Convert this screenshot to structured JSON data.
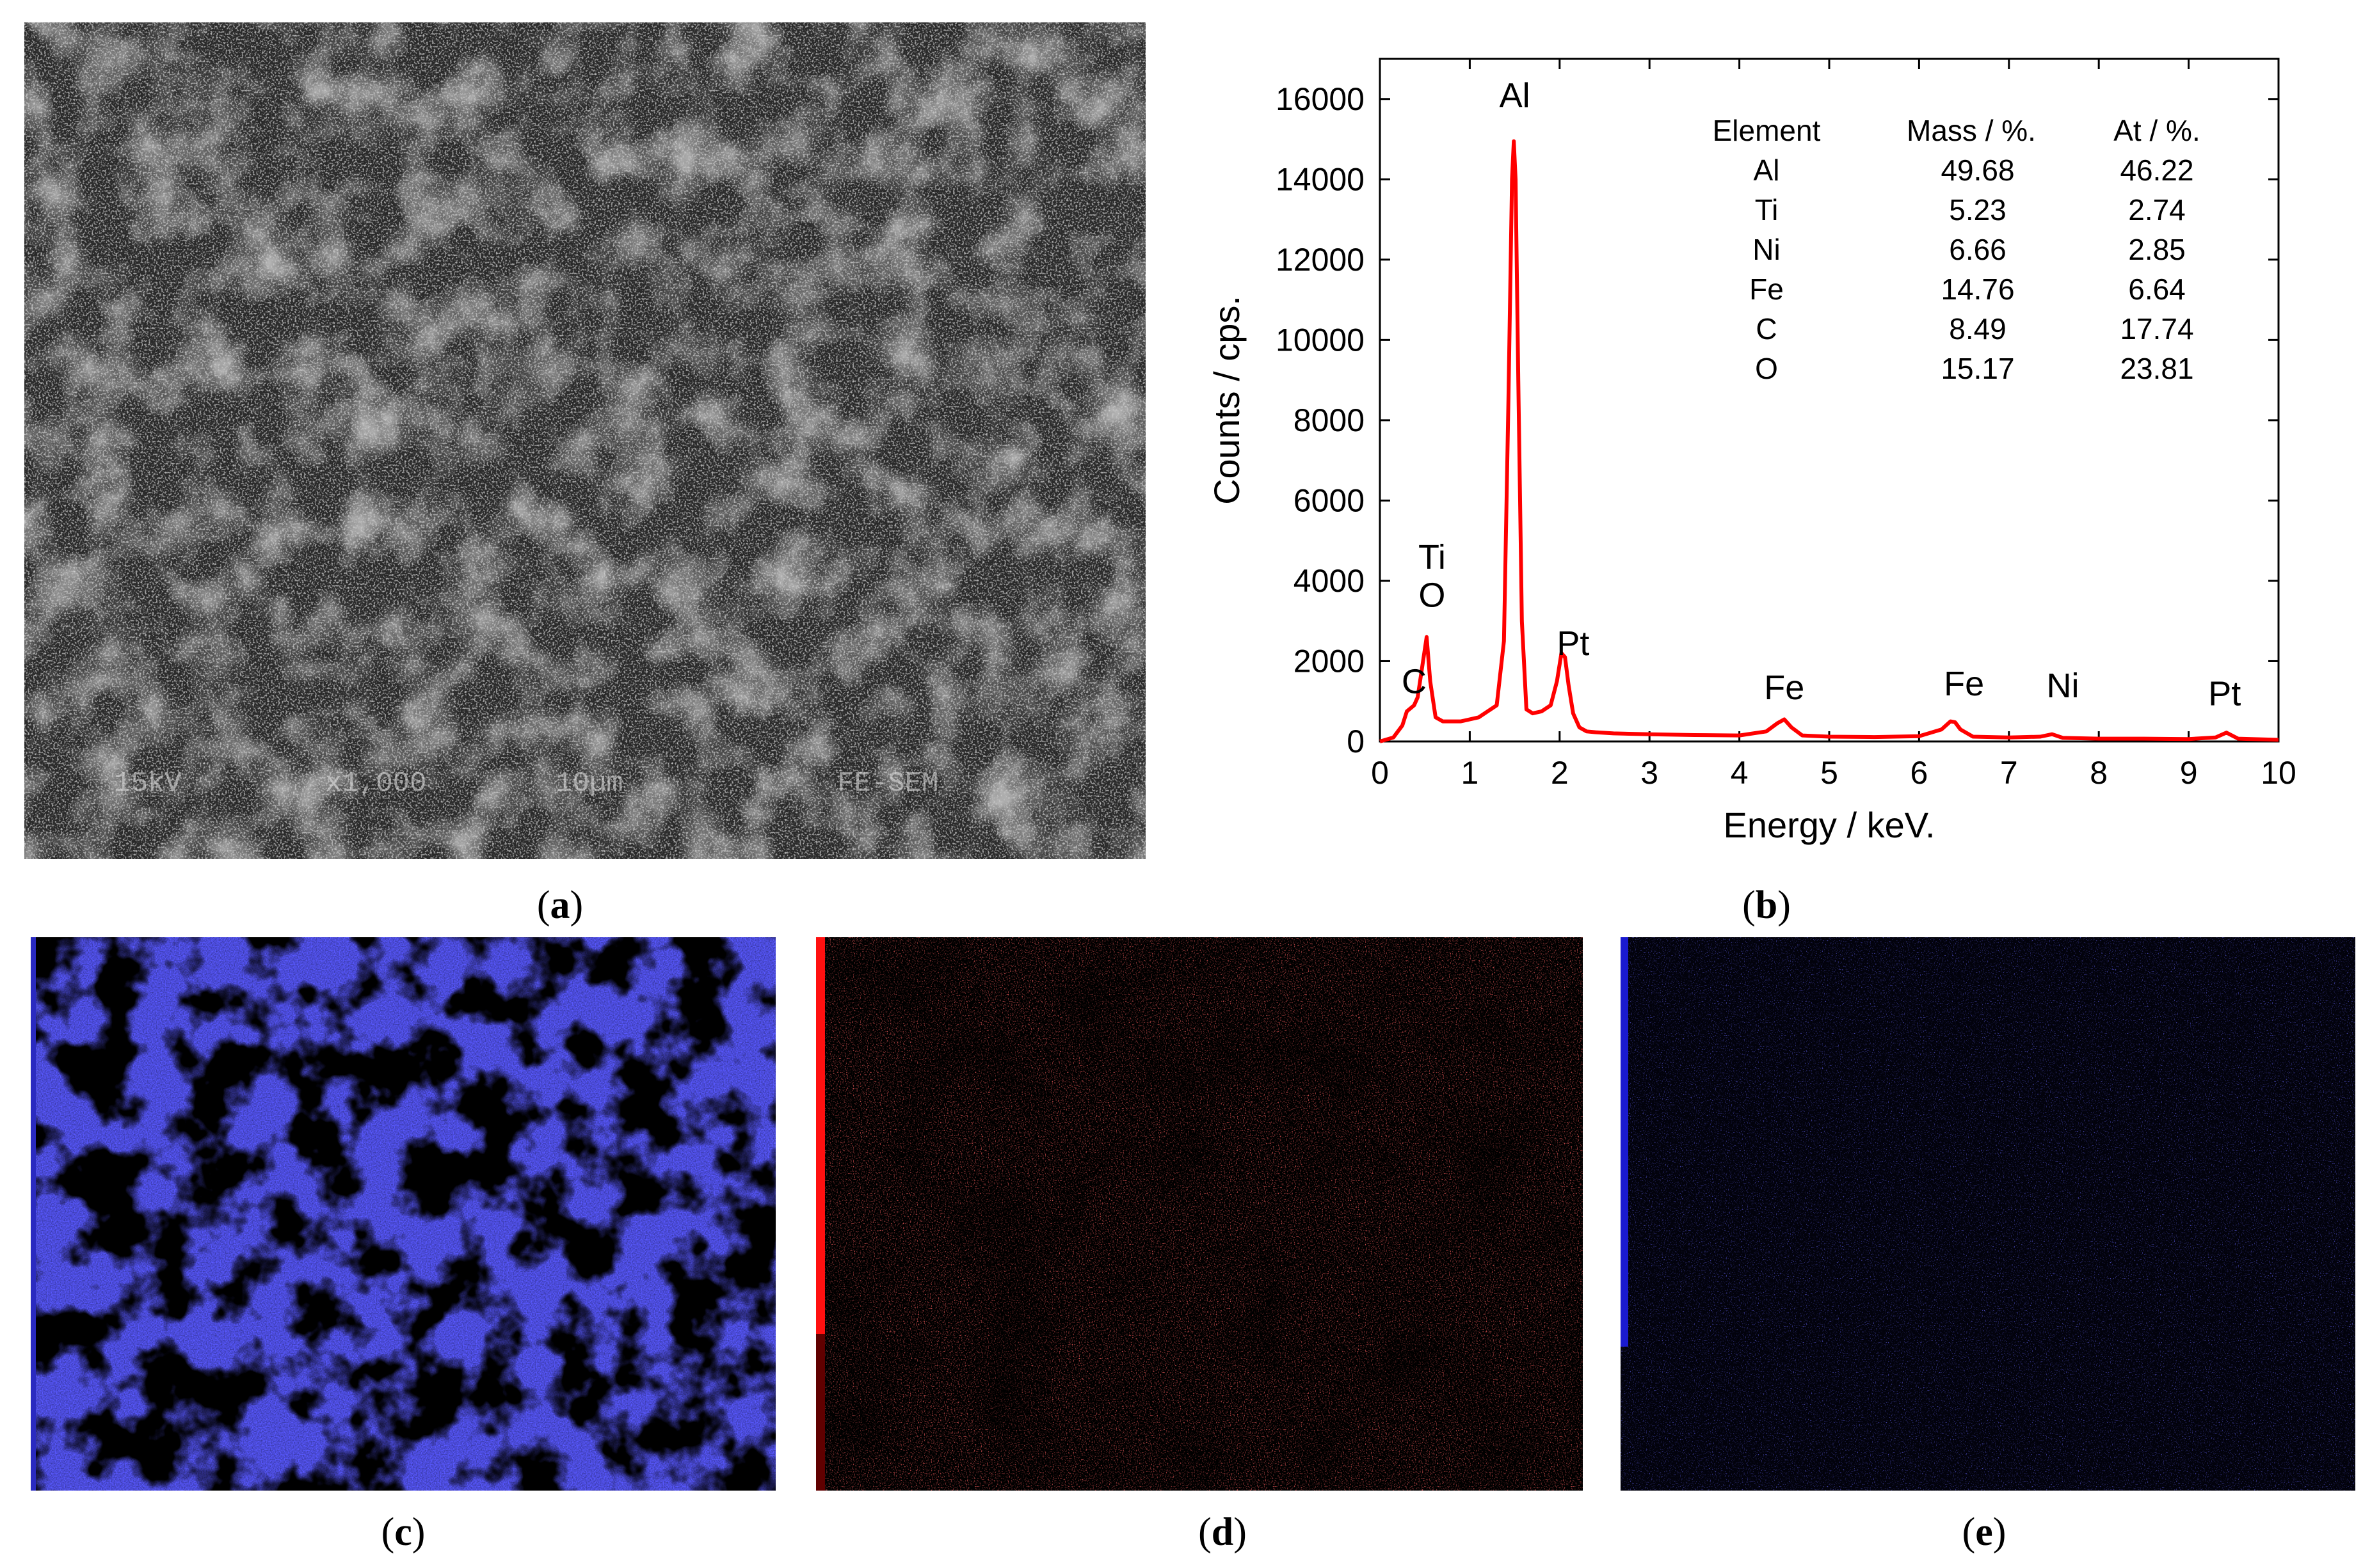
{
  "panels": {
    "a": {
      "label": "a"
    },
    "b": {
      "label": "b"
    },
    "c": {
      "label": "c"
    },
    "d": {
      "label": "d"
    },
    "e": {
      "label": "e"
    }
  },
  "sem_image": {
    "overlay_text": [
      "15kV",
      "x1,000",
      "10µm",
      "FE-SEM"
    ]
  },
  "maps": {
    "c_color": "#1a1aff",
    "d_color": "#ff1a1a",
    "e_color": "#2020e0"
  },
  "chart_data": {
    "type": "line",
    "title": "",
    "xlabel": "Energy / keV.",
    "ylabel": "Counts / cps.",
    "xlim": [
      0,
      10
    ],
    "ylim": [
      0,
      17000
    ],
    "xticks": [
      0,
      1,
      2,
      3,
      4,
      5,
      6,
      7,
      8,
      9,
      10
    ],
    "yticks": [
      0,
      2000,
      4000,
      6000,
      8000,
      10000,
      12000,
      14000,
      16000
    ],
    "series": [
      {
        "color": "#ff0000",
        "x": [
          0,
          0.15,
          0.25,
          0.3,
          0.38,
          0.42,
          0.46,
          0.52,
          0.56,
          0.62,
          0.7,
          0.9,
          1.1,
          1.3,
          1.38,
          1.43,
          1.47,
          1.49,
          1.51,
          1.54,
          1.58,
          1.63,
          1.7,
          1.8,
          1.9,
          1.97,
          2.02,
          2.06,
          2.1,
          2.15,
          2.22,
          2.3,
          2.4,
          2.6,
          3.0,
          3.5,
          4.0,
          4.3,
          4.42,
          4.5,
          4.58,
          4.7,
          5.0,
          5.5,
          6.0,
          6.25,
          6.35,
          6.4,
          6.46,
          6.6,
          7.0,
          7.35,
          7.48,
          7.6,
          8.0,
          8.5,
          9.0,
          9.3,
          9.42,
          9.55,
          10.0
        ],
        "y": [
          0,
          100,
          400,
          750,
          900,
          1100,
          1700,
          2600,
          1500,
          600,
          500,
          500,
          600,
          900,
          2500,
          8500,
          14000,
          14950,
          14000,
          9000,
          3000,
          800,
          700,
          750,
          900,
          1500,
          2200,
          2100,
          1400,
          700,
          350,
          250,
          230,
          200,
          180,
          160,
          150,
          250,
          450,
          550,
          350,
          150,
          120,
          110,
          130,
          300,
          500,
          480,
          300,
          120,
          100,
          120,
          180,
          90,
          70,
          70,
          60,
          100,
          220,
          70,
          40
        ]
      }
    ],
    "annotations": [
      {
        "text": "Al",
        "x": 1.5,
        "y": 15800
      },
      {
        "text": "Ti",
        "x": 0.58,
        "y": 4300
      },
      {
        "text": "O",
        "x": 0.58,
        "y": 3350
      },
      {
        "text": "C",
        "x": 0.38,
        "y": 1200
      },
      {
        "text": "Pt",
        "x": 2.15,
        "y": 2150
      },
      {
        "text": "Fe",
        "x": 4.5,
        "y": 1050
      },
      {
        "text": "Fe",
        "x": 6.5,
        "y": 1150
      },
      {
        "text": "Ni",
        "x": 7.6,
        "y": 1100
      },
      {
        "text": "Pt",
        "x": 9.4,
        "y": 900
      }
    ],
    "table": {
      "headers": [
        "Element",
        "Mass / %.",
        "At / %."
      ],
      "rows": [
        [
          "Al",
          "49.68",
          "46.22"
        ],
        [
          "Ti",
          "5.23",
          "2.74"
        ],
        [
          "Ni",
          "6.66",
          "2.85"
        ],
        [
          "Fe",
          "14.76",
          "6.64"
        ],
        [
          "C",
          "8.49",
          "17.74"
        ],
        [
          "O",
          "15.17",
          "23.81"
        ]
      ]
    }
  }
}
